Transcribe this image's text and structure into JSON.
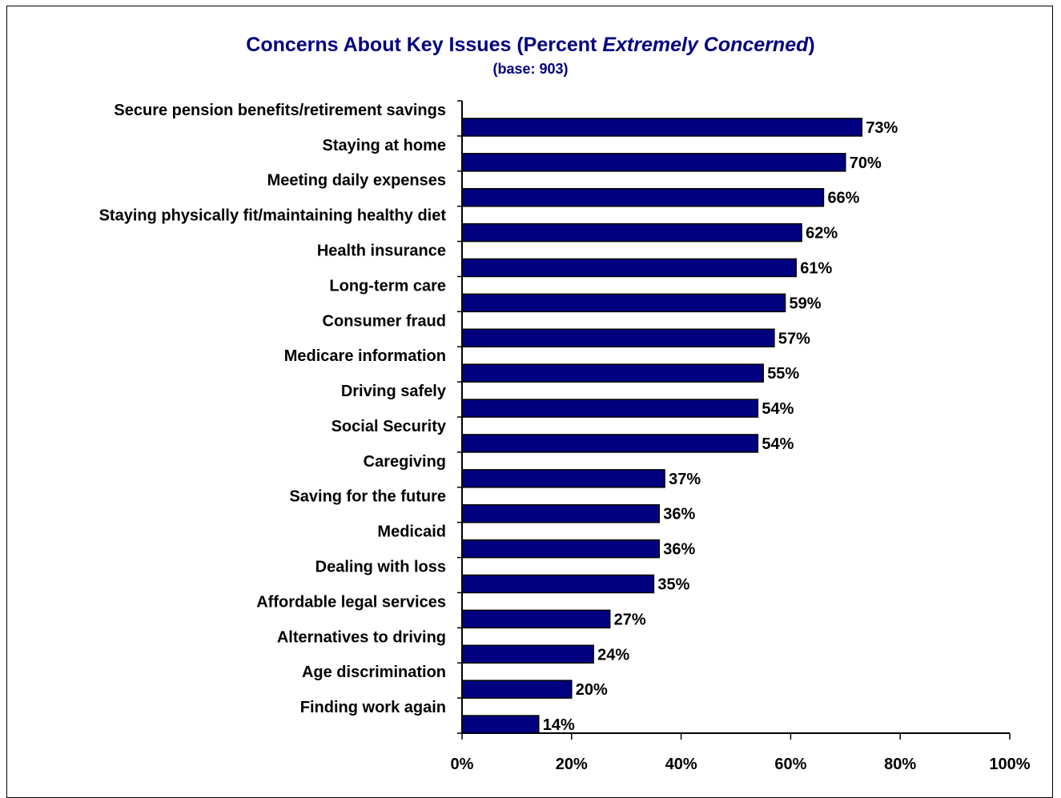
{
  "chart_data": {
    "type": "bar",
    "orientation": "horizontal",
    "title_main": "Concerns About Key Issues (Percent ",
    "title_italic": "Extremely Concerned",
    "title_end": ")",
    "subtitle": "(base: 903)",
    "categories": [
      "Secure pension benefits/retirement savings",
      "Staying at home",
      "Meeting daily expenses",
      "Staying physically fit/maintaining healthy diet",
      "Health insurance",
      "Long-term care",
      "Consumer fraud",
      "Medicare information",
      "Driving safely",
      "Social Security",
      "Caregiving",
      "Saving for the future",
      "Medicaid",
      "Dealing with loss",
      "Affordable legal services",
      "Alternatives to driving",
      "Age discrimination",
      "Finding work again"
    ],
    "values": [
      73,
      70,
      66,
      62,
      61,
      59,
      57,
      55,
      54,
      54,
      37,
      36,
      36,
      35,
      27,
      24,
      20,
      14
    ],
    "value_labels": [
      "73%",
      "70%",
      "66%",
      "62%",
      "61%",
      "59%",
      "57%",
      "55%",
      "54%",
      "54%",
      "37%",
      "36%",
      "36%",
      "35%",
      "27%",
      "24%",
      "20%",
      "14%"
    ],
    "x_ticks": [
      "0%",
      "20%",
      "40%",
      "60%",
      "80%",
      "100%"
    ],
    "xlim": [
      0,
      100
    ],
    "grid": false,
    "legend": "none",
    "bar_color": "#000080",
    "title_color": "#000080"
  }
}
